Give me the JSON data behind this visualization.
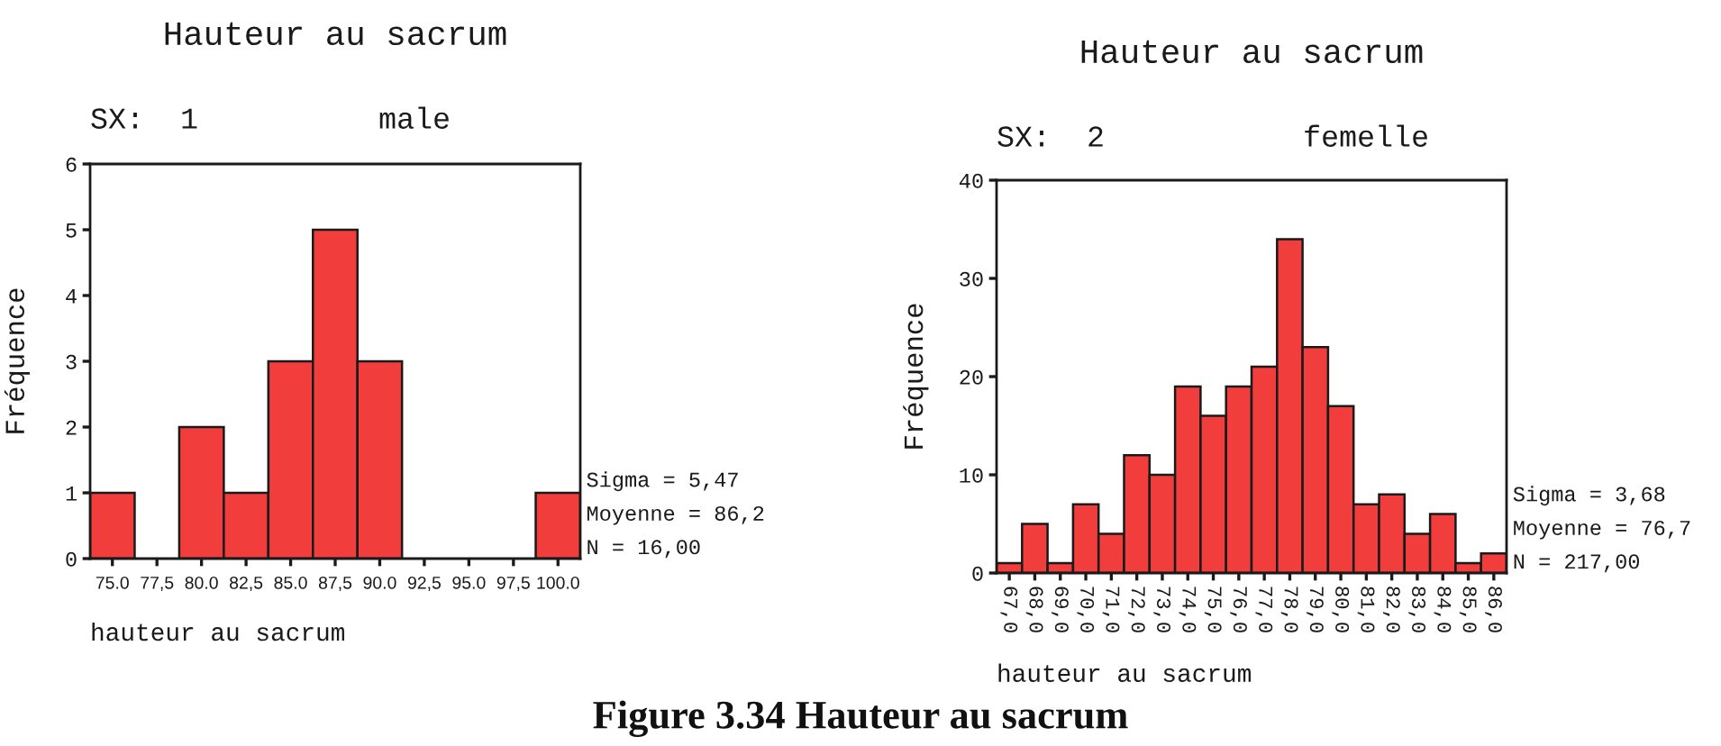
{
  "chart_data": [
    {
      "type": "histogram",
      "title": "Hauteur au sacrum",
      "subtitle": "SX:  1          male",
      "xlabel": "hauteur au sacrum",
      "ylabel": "Fréquence",
      "bins": [
        73.75,
        76.25,
        78.75,
        81.25,
        83.75,
        86.25,
        88.75,
        91.25,
        93.75,
        96.25,
        98.75,
        101.25
      ],
      "values": [
        1,
        0,
        2,
        1,
        3,
        5,
        3,
        0,
        0,
        0,
        1
      ],
      "color": "#f23d3d",
      "xlim": [
        73.75,
        101.25
      ],
      "ylim": [
        0,
        6
      ],
      "xticks": [
        {
          "value": 75,
          "label": "75.0"
        },
        {
          "value": 77.5,
          "label": "77,5"
        },
        {
          "value": 80,
          "label": "80.0"
        },
        {
          "value": 82.5,
          "label": "82,5"
        },
        {
          "value": 85,
          "label": "85.0"
        },
        {
          "value": 87.5,
          "label": "87,5"
        },
        {
          "value": 90,
          "label": "90.0"
        },
        {
          "value": 92.5,
          "label": "92,5"
        },
        {
          "value": 95,
          "label": "95.0"
        },
        {
          "value": 97.5,
          "label": "97,5"
        },
        {
          "value": 100,
          "label": "100.0"
        }
      ],
      "yticks": [
        0,
        1,
        2,
        3,
        4,
        5,
        6
      ],
      "annotations": [
        "Sigma = 5,47\nMoyenne = 86,2\nN = 16,00"
      ]
    },
    {
      "type": "histogram",
      "title": "Hauteur au sacrum",
      "subtitle": "SX:  2           femelle",
      "xlabel": "hauteur au sacrum",
      "ylabel": "Fréquence",
      "bins": [
        66.5,
        67.5,
        68.5,
        69.5,
        70.5,
        71.5,
        72.5,
        73.5,
        74.5,
        75.5,
        76.5,
        77.5,
        78.5,
        79.5,
        80.5,
        81.5,
        82.5,
        83.5,
        84.5,
        85.5,
        86.5
      ],
      "values": [
        1,
        5,
        1,
        7,
        4,
        12,
        10,
        19,
        16,
        19,
        21,
        34,
        23,
        17,
        7,
        8,
        4,
        6,
        1,
        2
      ],
      "color": "#f23d3d",
      "xlim": [
        66.5,
        86.5
      ],
      "ylim": [
        0,
        40
      ],
      "xticks": [
        {
          "value": 67,
          "label": "67,0"
        },
        {
          "value": 68,
          "label": "68,0"
        },
        {
          "value": 69,
          "label": "69,0"
        },
        {
          "value": 70,
          "label": "70,0"
        },
        {
          "value": 71,
          "label": "71,0"
        },
        {
          "value": 72,
          "label": "72,0"
        },
        {
          "value": 73,
          "label": "73,0"
        },
        {
          "value": 74,
          "label": "74,0"
        },
        {
          "value": 75,
          "label": "75,0"
        },
        {
          "value": 76,
          "label": "76,0"
        },
        {
          "value": 77,
          "label": "77,0"
        },
        {
          "value": 78,
          "label": "78,0"
        },
        {
          "value": 79,
          "label": "79,0"
        },
        {
          "value": 80,
          "label": "80,0"
        },
        {
          "value": 81,
          "label": "81,0"
        },
        {
          "value": 82,
          "label": "82,0"
        },
        {
          "value": 83,
          "label": "83,0"
        },
        {
          "value": 84,
          "label": "84,0"
        },
        {
          "value": 85,
          "label": "85,0"
        },
        {
          "value": 86,
          "label": "86,0"
        }
      ],
      "yticks": [
        0,
        10,
        20,
        30,
        40
      ],
      "annotations": [
        "Sigma = 3,68\nMoyenne = 76,7\nN = 217,00",
        "Figure 3.34 Hauteur au sacrum"
      ]
    }
  ]
}
